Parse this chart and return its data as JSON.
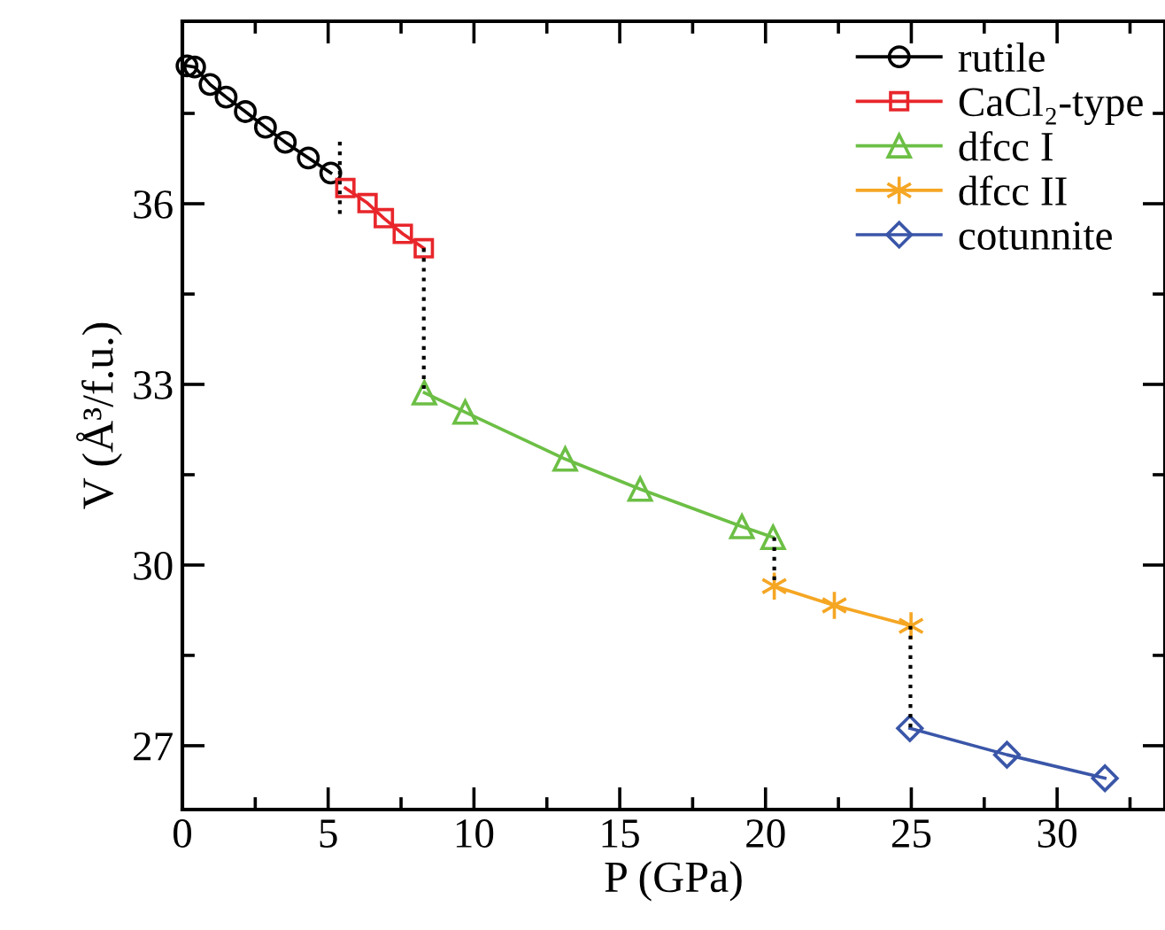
{
  "chart_data": {
    "type": "line",
    "xlabel": "P (GPa)",
    "ylabel": "V (Å³/f.u.)",
    "xlim": [
      0,
      33.7
    ],
    "ylim": [
      25.94,
      39.03
    ],
    "xticks": [
      0,
      {
        "value": 2.5,
        "label": null
      },
      5,
      {
        "value": 7.5,
        "label": null
      },
      10,
      {
        "value": 12.5,
        "label": null
      },
      15,
      {
        "value": 17.5,
        "label": null
      },
      20,
      {
        "value": 22.5,
        "label": null
      },
      25,
      {
        "value": 27.5,
        "label": null
      },
      30,
      {
        "value": 32.5,
        "label": null
      }
    ],
    "yticks": [
      {
        "value": 27,
        "label": "27"
      },
      {
        "value": 28.5,
        "label": null
      },
      30,
      {
        "value": 31.5,
        "label": null
      },
      33,
      {
        "value": 34.5,
        "label": null
      },
      36,
      {
        "value": 37.5,
        "label": null
      }
    ],
    "grid": false,
    "legend": "top right",
    "series": [
      {
        "name": "rutile",
        "color": "#000000",
        "marker": "circle",
        "x": [
          0.16,
          0.42,
          0.95,
          1.5,
          2.16,
          2.85,
          3.53,
          4.32,
          5.09
        ],
        "values": [
          38.29,
          38.27,
          37.98,
          37.77,
          37.53,
          37.27,
          37.02,
          36.76,
          36.51
        ]
      },
      {
        "name": "CaCl₂-type",
        "color": "#e8262b",
        "marker": "square",
        "x": [
          5.59,
          6.35,
          6.91,
          7.56,
          8.28
        ],
        "values": [
          36.26,
          36.01,
          35.76,
          35.5,
          35.26
        ]
      },
      {
        "name": "dfcc I",
        "color": "#6cbf45",
        "marker": "triangle",
        "x": [
          8.3,
          9.7,
          13.13,
          15.7,
          19.19,
          20.26
        ],
        "values": [
          32.86,
          32.54,
          31.76,
          31.26,
          30.64,
          30.46
        ]
      },
      {
        "name": "dfcc II",
        "color": "#f5a623",
        "marker": "cross",
        "x": [
          20.3,
          22.36,
          24.99
        ],
        "values": [
          29.65,
          29.33,
          28.99
        ]
      },
      {
        "name": "cotunnite",
        "color": "#3a56a8",
        "marker": "diamond",
        "x": [
          24.95,
          28.28,
          31.64
        ],
        "values": [
          27.29,
          26.85,
          26.46
        ]
      },
      {
        "color": "#000000",
        "line_style": "dotted",
        "x": [
          5.4,
          5.4
        ],
        "values": [
          37.03,
          35.79
        ]
      },
      {
        "color": "#000000",
        "line_style": "dotted",
        "x": [
          8.28,
          8.28
        ],
        "values": [
          35.26,
          32.86
        ]
      },
      {
        "color": "#000000",
        "line_style": "dotted",
        "x": [
          20.3,
          20.3
        ],
        "values": [
          30.46,
          29.65
        ]
      },
      {
        "color": "#000000",
        "line_style": "dotted",
        "x": [
          24.97,
          24.97
        ],
        "values": [
          28.99,
          27.29
        ]
      }
    ]
  }
}
